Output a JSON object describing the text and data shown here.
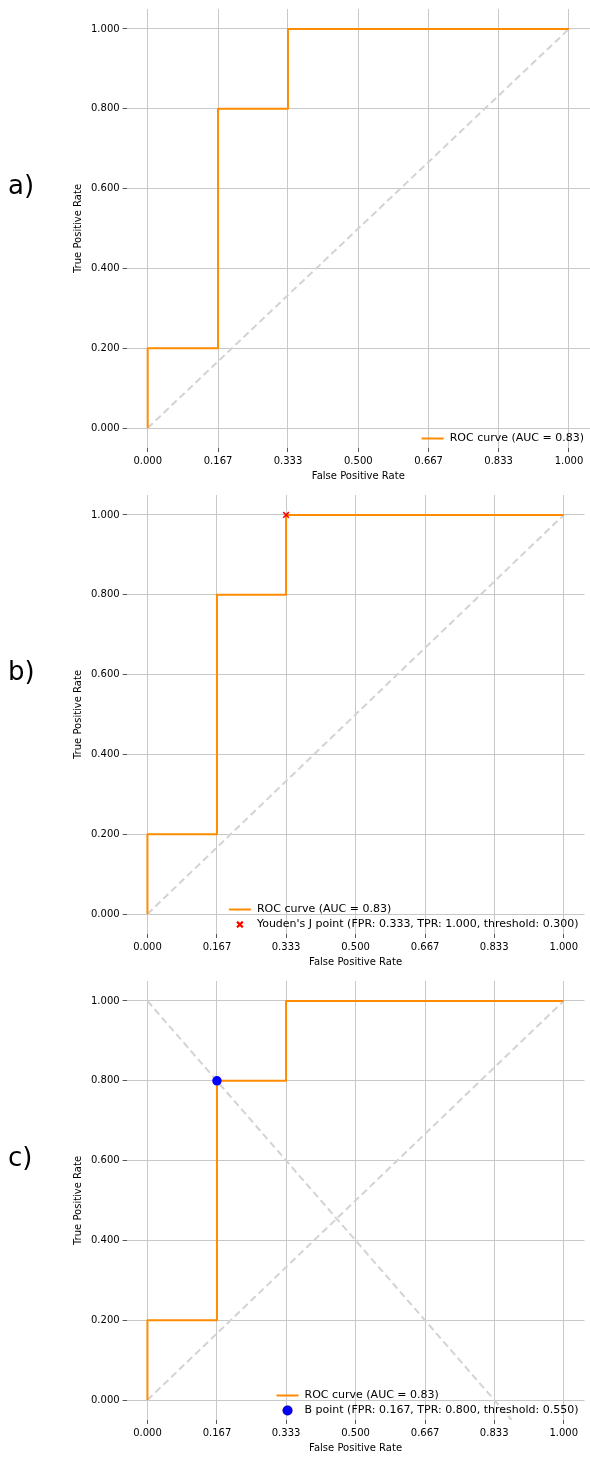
{
  "chart_data": [
    {
      "type": "line",
      "annotations": [
        "a)"
      ],
      "xlabel": "False Positive Rate",
      "ylabel": "True Positive Rate",
      "xlim": [
        -0.05,
        1.05
      ],
      "ylim": [
        -0.05,
        1.05
      ],
      "xticks": [
        {
          "value": 0,
          "label": "0.000"
        },
        {
          "value": 0.167,
          "label": "0.167"
        },
        {
          "value": 0.333,
          "label": "0.333"
        },
        {
          "value": 0.5,
          "label": "0.500"
        },
        {
          "value": 0.667,
          "label": "0.667"
        },
        {
          "value": 0.833,
          "label": "0.833"
        },
        {
          "value": 1,
          "label": "1.000"
        }
      ],
      "yticks": [
        {
          "value": 0,
          "label": "0.000"
        },
        {
          "value": 0.2,
          "label": "0.200"
        },
        {
          "value": 0.4,
          "label": "0.400"
        },
        {
          "value": 0.6,
          "label": "0.600"
        },
        {
          "value": 0.8,
          "label": "0.800"
        },
        {
          "value": 1,
          "label": "1.000"
        }
      ],
      "grid": true,
      "legend": "bottom right",
      "series": [
        {
          "type": "line",
          "name": "ROC curve (AUC = 0.83)",
          "color": "#ff8c00",
          "line_style": "solid",
          "marker": "none",
          "x": [
            0,
            0,
            0.167,
            0.167,
            0.333,
            0.333,
            1
          ],
          "values": [
            0,
            0.2,
            0.2,
            0.8,
            0.8,
            1,
            1
          ]
        },
        {
          "type": "line",
          "color": "#d3d3d3",
          "line_style": "dashed",
          "marker": "none",
          "x": [
            0,
            1
          ],
          "values": [
            0,
            1
          ]
        }
      ]
    },
    {
      "type": "line",
      "annotations": [
        "b)"
      ],
      "xlabel": "False Positive Rate",
      "ylabel": "True Positive Rate",
      "xlim": [
        -0.05,
        1.05
      ],
      "ylim": [
        -0.05,
        1.05
      ],
      "xticks": [
        {
          "value": 0,
          "label": "0.000"
        },
        {
          "value": 0.167,
          "label": "0.167"
        },
        {
          "value": 0.333,
          "label": "0.333"
        },
        {
          "value": 0.5,
          "label": "0.500"
        },
        {
          "value": 0.667,
          "label": "0.667"
        },
        {
          "value": 0.833,
          "label": "0.833"
        },
        {
          "value": 1,
          "label": "1.000"
        }
      ],
      "yticks": [
        {
          "value": 0,
          "label": "0.000"
        },
        {
          "value": 0.2,
          "label": "0.200"
        },
        {
          "value": 0.4,
          "label": "0.400"
        },
        {
          "value": 0.6,
          "label": "0.600"
        },
        {
          "value": 0.8,
          "label": "0.800"
        },
        {
          "value": 1,
          "label": "1.000"
        }
      ],
      "grid": true,
      "legend": "bottom right",
      "series": [
        {
          "type": "line",
          "name": "ROC curve (AUC = 0.83)",
          "color": "#ff8c00",
          "line_style": "solid",
          "marker": "none",
          "x": [
            0,
            0,
            0.167,
            0.167,
            0.333,
            0.333,
            1
          ],
          "values": [
            0,
            0.2,
            0.2,
            0.8,
            0.8,
            1,
            1
          ]
        },
        {
          "type": "line",
          "color": "#d3d3d3",
          "line_style": "dashed",
          "marker": "none",
          "x": [
            0,
            1
          ],
          "values": [
            0,
            1
          ]
        },
        {
          "type": "scatter",
          "name": "Youden's J point (FPR: 0.333, TPR: 1.000, threshold: 0.300)",
          "color": "#ff0000",
          "marker": "cross",
          "x": [
            0.333
          ],
          "values": [
            1
          ]
        }
      ]
    },
    {
      "type": "line",
      "annotations": [
        "c)"
      ],
      "xlabel": "False Positive Rate",
      "ylabel": "True Positive Rate",
      "xlim": [
        -0.05,
        1.05
      ],
      "ylim": [
        -0.05,
        1.05
      ],
      "xticks": [
        {
          "value": 0,
          "label": "0.000"
        },
        {
          "value": 0.167,
          "label": "0.167"
        },
        {
          "value": 0.333,
          "label": "0.333"
        },
        {
          "value": 0.5,
          "label": "0.500"
        },
        {
          "value": 0.667,
          "label": "0.667"
        },
        {
          "value": 0.833,
          "label": "0.833"
        },
        {
          "value": 1,
          "label": "1.000"
        }
      ],
      "yticks": [
        {
          "value": 0,
          "label": "0.000"
        },
        {
          "value": 0.2,
          "label": "0.200"
        },
        {
          "value": 0.4,
          "label": "0.400"
        },
        {
          "value": 0.6,
          "label": "0.600"
        },
        {
          "value": 0.8,
          "label": "0.800"
        },
        {
          "value": 1,
          "label": "1.000"
        }
      ],
      "grid": true,
      "legend": "bottom right",
      "series": [
        {
          "type": "line",
          "name": "ROC curve (AUC = 0.83)",
          "color": "#ff8c00",
          "line_style": "solid",
          "marker": "none",
          "x": [
            0,
            0,
            0.167,
            0.167,
            0.333,
            0.333,
            1
          ],
          "values": [
            0,
            0.2,
            0.2,
            0.8,
            0.8,
            1,
            1
          ]
        },
        {
          "type": "line",
          "color": "#d3d3d3",
          "line_style": "dashed",
          "marker": "none",
          "x": [
            0,
            1
          ],
          "values": [
            0,
            1
          ]
        },
        {
          "type": "line",
          "color": "#d3d3d3",
          "line_style": "dashed",
          "marker": "none",
          "x": [
            0,
            0.875
          ],
          "values": [
            1,
            -0.05
          ]
        },
        {
          "type": "scatter",
          "name": "B point (FPR: 0.167, TPR: 0.800, threshold: 0.550)",
          "color": "#0000ff",
          "marker": "circle",
          "x": [
            0.167
          ],
          "values": [
            0.8
          ]
        }
      ]
    }
  ]
}
